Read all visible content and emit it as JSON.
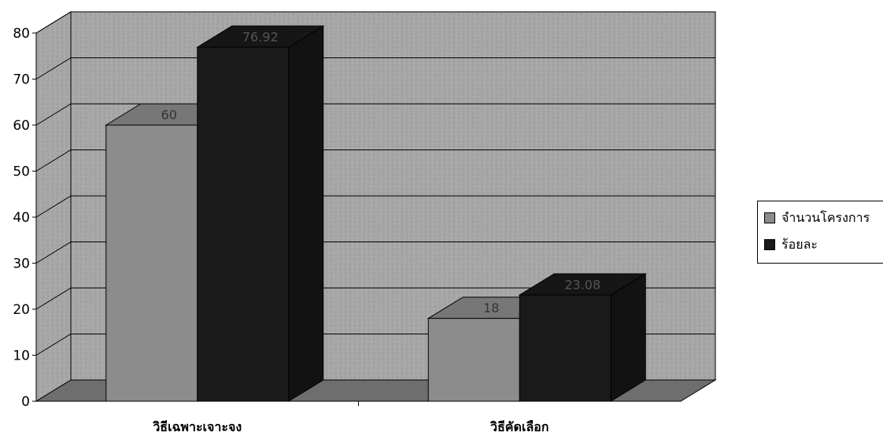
{
  "chart_data": {
    "type": "bar",
    "title": "",
    "xlabel": "",
    "ylabel": "",
    "categories": [
      "วิธีเฉพาะเจาะจง",
      "วิธีคัดเลือก"
    ],
    "series": [
      {
        "name": "จำนวนโครงการ",
        "values": [
          60,
          18
        ],
        "labels": [
          "60",
          "18"
        ],
        "color": "#8c8c8c"
      },
      {
        "name": "ร้อยละ",
        "values": [
          76.92,
          23.08
        ],
        "labels": [
          "76.92",
          "23.08"
        ],
        "color": "#1a1a1a"
      }
    ],
    "yticks": [
      0,
      10,
      20,
      30,
      40,
      50,
      60,
      70,
      80
    ],
    "ylim": [
      0,
      80
    ],
    "grid": true,
    "style": "3d",
    "legend_position": "right"
  }
}
